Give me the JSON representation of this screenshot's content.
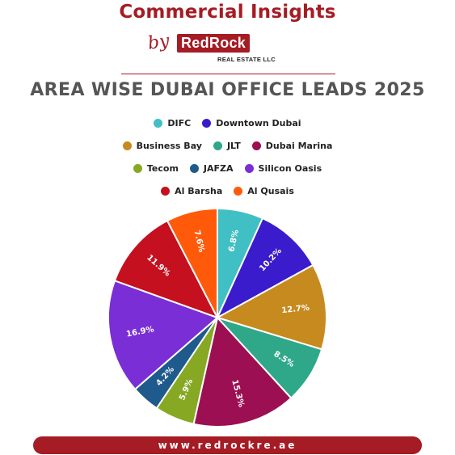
{
  "header": {
    "title": "Commercial Insights",
    "by_text": "by",
    "brand_name": "RedRock",
    "brand_subtitle": "REAL ESTATE LLC"
  },
  "colors": {
    "brand_red": "#a51c24",
    "title_gray": "#555555"
  },
  "chart_data": {
    "type": "pie",
    "title": "AREA WISE DUBAI OFFICE LEADS 2025",
    "legend_position": "top",
    "slices": [
      {
        "name": "DIFC",
        "value": 6.8,
        "label": "6.8%",
        "color": "#40bfc4"
      },
      {
        "name": "Downtown Dubai",
        "value": 10.2,
        "label": "10.2%",
        "color": "#3a1ccc"
      },
      {
        "name": "Business Bay",
        "value": 12.7,
        "label": "12.7%",
        "color": "#c78a1e"
      },
      {
        "name": "JLT",
        "value": 8.5,
        "label": "8.5%",
        "color": "#2fa88a"
      },
      {
        "name": "Dubai Marina",
        "value": 15.3,
        "label": "15.3%",
        "color": "#9c0f52"
      },
      {
        "name": "Tecom",
        "value": 5.9,
        "label": "5.9%",
        "color": "#86a823"
      },
      {
        "name": "JAFZA",
        "value": 4.2,
        "label": "4.2%",
        "color": "#1f5a8c"
      },
      {
        "name": "Silicon Oasis",
        "value": 16.9,
        "label": "16.9%",
        "color": "#7a2ed6"
      },
      {
        "name": "Al Barsha",
        "value": 11.9,
        "label": "11.9%",
        "color": "#c4101f"
      },
      {
        "name": "Al Qusais",
        "value": 7.6,
        "label": "7.6%",
        "color": "#ff5a0a"
      }
    ]
  },
  "footer": {
    "url": "www.redrockre.ae"
  }
}
